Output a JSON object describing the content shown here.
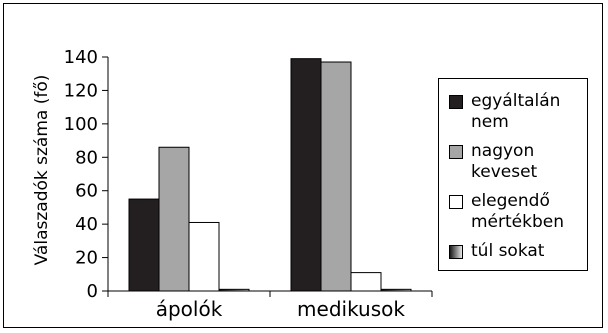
{
  "chart_data": {
    "type": "bar",
    "categories": [
      "ápolók",
      "medikusok"
    ],
    "series": [
      {
        "name": "egyáltalán nem",
        "values": [
          55,
          139
        ],
        "color": "#231f20"
      },
      {
        "name": "nagyon keveset",
        "values": [
          86,
          137
        ],
        "color": "#a6a6a6"
      },
      {
        "name": "elegendő mértékben",
        "values": [
          41,
          11
        ],
        "color": "#ffffff"
      },
      {
        "name": "túl sokat",
        "values": [
          1,
          1
        ],
        "color": "#7f7f7f"
      }
    ],
    "ylabel": "Válaszadók száma (fő)",
    "xlabel": "",
    "ylim": [
      0,
      140
    ],
    "yticks": [
      0,
      20,
      40,
      60,
      80,
      100,
      120,
      140
    ],
    "grid": false,
    "legend": "right"
  },
  "legend": {
    "items": [
      {
        "line1": "egyáltalán",
        "line2": "nem"
      },
      {
        "line1": "nagyon",
        "line2": "keveset"
      },
      {
        "line1": "elegendő",
        "line2": "mértékben"
      },
      {
        "line1": "túl sokat",
        "line2": ""
      }
    ]
  }
}
